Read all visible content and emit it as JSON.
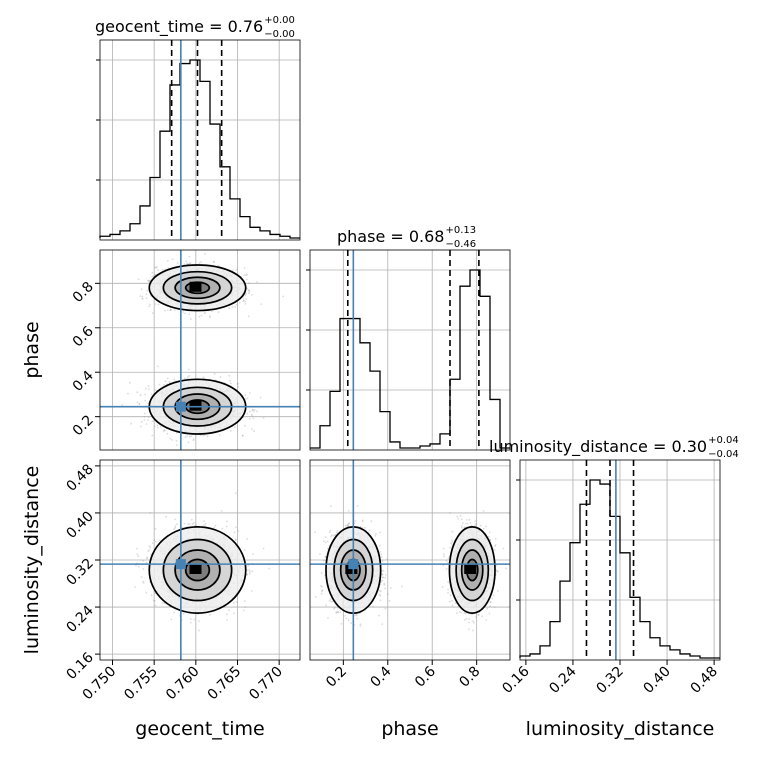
{
  "chart_data": {
    "type": "corner",
    "parameters": [
      "geocent_time",
      "phase",
      "luminosity_distance"
    ],
    "axis_labels": {
      "x": [
        "geocent_time",
        "phase",
        "luminosity_distance"
      ],
      "y": [
        "phase",
        "luminosity_distance"
      ]
    },
    "titles": [
      {
        "text": "geocent_time = 0.76",
        "sup": "+0.00",
        "sub": "−0.00"
      },
      {
        "text": "phase = 0.68",
        "sup": "+0.13",
        "sub": "−0.46"
      },
      {
        "text": "luminosity_distance = 0.30",
        "sup": "+0.04",
        "sub": "−0.04"
      }
    ],
    "ranges": [
      [
        0.7485,
        0.7725
      ],
      [
        0.05,
        0.95
      ],
      [
        0.15,
        0.49
      ]
    ],
    "ticks": {
      "x": [
        [
          "0.750",
          "0.755",
          "0.760",
          "0.765",
          "0.770"
        ],
        [
          "0.2",
          "0.4",
          "0.6",
          "0.8"
        ],
        [
          "0.16",
          "0.24",
          "0.32",
          "0.40",
          "0.48"
        ]
      ],
      "y": [
        [
          "0.2",
          "0.4",
          "0.6",
          "0.8"
        ],
        [
          "0.16",
          "0.24",
          "0.32",
          "0.40",
          "0.48"
        ]
      ]
    },
    "truths": [
      0.7582,
      0.245,
      0.313
    ],
    "quantiles": [
      [
        0.7571,
        0.7602,
        0.7631
      ],
      [
        0.22,
        0.68,
        0.81
      ],
      [
        0.263,
        0.303,
        0.343
      ]
    ],
    "histograms": [
      {
        "edges_start": 0.7485,
        "edges_end": 0.7725,
        "counts": [
          1,
          2,
          4,
          8,
          18,
          34,
          60,
          86,
          98,
          100,
          88,
          64,
          40,
          22,
          12,
          6,
          4,
          2,
          1,
          0
        ]
      },
      {
        "edges_start": 0.05,
        "edges_end": 0.95,
        "counts": [
          0,
          11,
          28,
          64,
          64,
          52,
          38,
          18,
          3,
          0,
          0,
          1,
          2,
          7,
          34,
          80,
          88,
          75,
          24,
          0
        ]
      },
      {
        "edges_start": 0.15,
        "edges_end": 0.49,
        "counts": [
          1,
          2,
          6,
          18,
          38,
          57,
          76,
          88,
          86,
          70,
          52,
          30,
          18,
          10,
          6,
          4,
          2,
          1,
          0,
          0
        ]
      }
    ],
    "contour_levels": 3,
    "colors": {
      "truth": "#4682b4",
      "hist": "#000000",
      "quantile": "#000000",
      "grid": "#b0b0b0",
      "points": "#9a9a9a"
    }
  }
}
